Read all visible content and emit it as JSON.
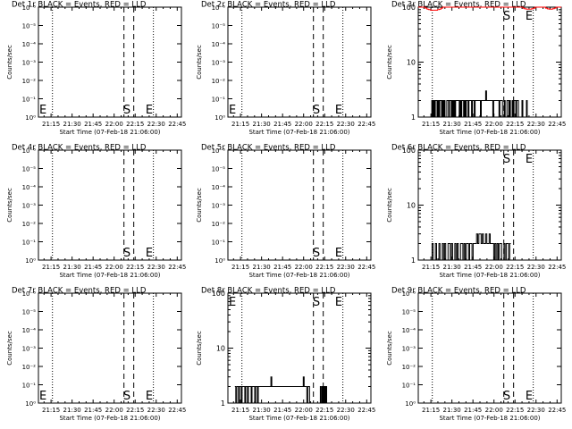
{
  "x_tick_labels": [
    "21:15",
    "21:30",
    "21:45",
    "22:00",
    "22:15",
    "22:30",
    "22:45"
  ],
  "xlabel": "Start Time (07-Feb-18 21:06:00)",
  "ylabel": "Counts/sec",
  "log_ticks_small": [
    "10⁰",
    "10⁻¹",
    "10⁻²",
    "10⁻³",
    "10⁻⁴",
    "10⁻⁵",
    "10⁻⁶"
  ],
  "log_ticks_large": [
    "1",
    "10",
    "100"
  ],
  "marker_s": "S",
  "marker_e": "E",
  "colors": {
    "events": "#000000",
    "lld": "#ff0000",
    "background": "#ffffff"
  },
  "chart_data": [
    {
      "type": "line",
      "title": "Det 1r BLACK = Events, RED = LLD",
      "xlabel": "Start Time (07-Feb-18 21:06:00)",
      "ylabel": "Counts/sec",
      "y_scale": "log",
      "ylim": [
        1e-06,
        1
      ],
      "x_range": [
        "21:06",
        "22:48"
      ],
      "grid": false,
      "dotted_lines": [
        "21:16",
        "22:28"
      ],
      "dashed_lines": [
        "22:07",
        "22:14"
      ],
      "s_marker_time": "22:09",
      "e_marker_time": "22:25",
      "e_left_edge": true,
      "events": [],
      "lld": []
    },
    {
      "type": "line",
      "title": "Det 2r BLACK = Events, RED = LLD",
      "xlabel": "Start Time (07-Feb-18 21:06:00)",
      "ylabel": "Counts/sec",
      "y_scale": "log",
      "ylim": [
        1e-06,
        1
      ],
      "x_range": [
        "21:06",
        "22:48"
      ],
      "grid": false,
      "dotted_lines": [
        "21:16",
        "22:28"
      ],
      "dashed_lines": [
        "22:07",
        "22:14"
      ],
      "s_marker_time": "22:09",
      "e_marker_time": "22:25",
      "e_left_edge": true,
      "events": [],
      "lld": []
    },
    {
      "type": "line",
      "title": "Det 3r BLACK = Events, RED = LLD",
      "xlabel": "Start Time (07-Feb-18 21:06:00)",
      "ylabel": "Counts/sec",
      "y_scale": "log",
      "ylim": [
        1,
        100
      ],
      "x_range": [
        "21:06",
        "22:48"
      ],
      "grid": false,
      "dotted_lines": [
        "21:16",
        "22:28"
      ],
      "dashed_lines": [
        "22:07",
        "22:14"
      ],
      "s_marker_time": "22:09",
      "e_marker_time": "22:25",
      "e_left_edge": false,
      "events": {
        "x_start": "21:15",
        "x_end": "22:25",
        "values": [
          1,
          2,
          1,
          2,
          1,
          2,
          2,
          1,
          2,
          1,
          2,
          2,
          1,
          2,
          1,
          2,
          1,
          1,
          2,
          2,
          1,
          2,
          2,
          1,
          2,
          1,
          2,
          1,
          2,
          2,
          2,
          2,
          1,
          2,
          1,
          2,
          2,
          1,
          2,
          1,
          2,
          2,
          1,
          2,
          2,
          2,
          1,
          2,
          2,
          1,
          2,
          2,
          2,
          2,
          2,
          2,
          1,
          2,
          2,
          2,
          2,
          2,
          3,
          2,
          2,
          2,
          2,
          2,
          2,
          2,
          1,
          2,
          2,
          2,
          2,
          2,
          2,
          1,
          2,
          2,
          2,
          1,
          1,
          2,
          1,
          1,
          2,
          2,
          1,
          2,
          1,
          1,
          2,
          1,
          2,
          2,
          1,
          2,
          2,
          1,
          1,
          1,
          1,
          2,
          1,
          1,
          1,
          1,
          2,
          1,
          1
        ]
      },
      "lld": {
        "x_start": "21:06",
        "x_end": "22:48",
        "values": [
          100,
          100,
          100,
          100,
          96,
          92,
          90,
          88,
          88,
          88,
          88,
          90,
          92,
          96,
          100,
          100,
          100,
          100,
          100,
          100,
          100,
          100,
          100,
          100,
          100,
          100,
          100,
          100,
          100,
          100,
          100,
          100,
          100,
          100,
          100,
          100,
          100,
          100,
          100,
          100,
          100,
          100,
          100,
          100,
          100,
          100,
          100,
          100,
          100,
          100,
          100,
          100,
          100,
          100,
          100,
          100,
          100,
          100,
          100,
          100,
          96,
          93,
          92,
          92,
          92,
          94,
          96,
          100,
          100,
          100,
          100,
          100,
          100,
          96,
          93,
          92,
          92,
          94,
          96,
          100,
          100,
          100
        ]
      }
    },
    {
      "type": "line",
      "title": "Det 4r BLACK = Events, RED = LLD",
      "xlabel": "Start Time (07-Feb-18 21:06:00)",
      "ylabel": "Counts/sec",
      "y_scale": "log",
      "ylim": [
        1e-06,
        1
      ],
      "x_range": [
        "21:06",
        "22:48"
      ],
      "grid": false,
      "dotted_lines": [
        "21:16",
        "22:28"
      ],
      "dashed_lines": [
        "22:07",
        "22:14"
      ],
      "s_marker_time": "22:09",
      "e_marker_time": "22:25",
      "e_left_edge": false,
      "events": [],
      "lld": []
    },
    {
      "type": "line",
      "title": "Det 5r BLACK = Events, RED = LLD",
      "xlabel": "Start Time (07-Feb-18 21:06:00)",
      "ylabel": "Counts/sec",
      "y_scale": "log",
      "ylim": [
        1e-06,
        1
      ],
      "x_range": [
        "21:06",
        "22:48"
      ],
      "grid": false,
      "dotted_lines": [
        "21:16",
        "22:28"
      ],
      "dashed_lines": [
        "22:07",
        "22:14"
      ],
      "s_marker_time": "22:09",
      "e_marker_time": "22:25",
      "e_left_edge": false,
      "events": [],
      "lld": []
    },
    {
      "type": "line",
      "title": "Det 6r BLACK = Events, RED = LLD",
      "xlabel": "Start Time (07-Feb-18 21:06:00)",
      "ylabel": "Counts/sec",
      "y_scale": "log",
      "ylim": [
        1,
        100
      ],
      "x_range": [
        "21:06",
        "22:48"
      ],
      "grid": false,
      "dotted_lines": [
        "21:16",
        "22:28"
      ],
      "dashed_lines": [
        "22:07",
        "22:14"
      ],
      "s_marker_time": "22:09",
      "e_marker_time": "22:25",
      "e_left_edge": false,
      "events": {
        "x_start": "21:15",
        "x_end": "22:12",
        "values": [
          1,
          2,
          1,
          1,
          2,
          1,
          1,
          2,
          1,
          1,
          2,
          1,
          2,
          1,
          1,
          2,
          2,
          1,
          2,
          1,
          1,
          2,
          1,
          2,
          1,
          1,
          2,
          2,
          1,
          2,
          1,
          2,
          2,
          1,
          2,
          2,
          1,
          2,
          2,
          2,
          3,
          2,
          3,
          3,
          2,
          3,
          2,
          2,
          3,
          2,
          2,
          3,
          2,
          2,
          2,
          1,
          2,
          1,
          2,
          1,
          2,
          2,
          1,
          1,
          2,
          1,
          2,
          2,
          1,
          2
        ]
      },
      "lld": []
    },
    {
      "type": "line",
      "title": "Det 7r BLACK = Events, RED = LLD",
      "xlabel": "Start Time (07-Feb-18 21:06:00)",
      "ylabel": "Counts/sec",
      "y_scale": "log",
      "ylim": [
        1e-06,
        1
      ],
      "x_range": [
        "21:06",
        "22:48"
      ],
      "grid": false,
      "dotted_lines": [
        "21:16",
        "22:28"
      ],
      "dashed_lines": [
        "22:07",
        "22:14"
      ],
      "s_marker_time": "22:09",
      "e_marker_time": "22:25",
      "e_left_edge": true,
      "events": [],
      "lld": []
    },
    {
      "type": "line",
      "title": "Det 8r BLACK = Events, RED = LLD",
      "xlabel": "Start Time (07-Feb-18 21:06:00)",
      "ylabel": "Counts/sec",
      "y_scale": "log",
      "ylim": [
        1,
        100
      ],
      "x_range": [
        "21:06",
        "22:48"
      ],
      "grid": false,
      "dotted_lines": [
        "21:16",
        "22:28"
      ],
      "dashed_lines": [
        "22:07",
        "22:14"
      ],
      "s_marker_time": "22:09",
      "e_marker_time": "22:25",
      "e_left_edge": true,
      "events": {
        "x_start": "21:11",
        "x_end": "22:19",
        "values": [
          2,
          1,
          2,
          2,
          1,
          2,
          2,
          1,
          2,
          2,
          2,
          1,
          2,
          2,
          1,
          2,
          2,
          2,
          1,
          2,
          2,
          2,
          1,
          2,
          2,
          1,
          2,
          2,
          2,
          2,
          2,
          2,
          2,
          2,
          2,
          2,
          2,
          2,
          2,
          2,
          3,
          2,
          2,
          2,
          2,
          2,
          2,
          2,
          2,
          2,
          2,
          2,
          2,
          2,
          2,
          2,
          2,
          2,
          2,
          2,
          2,
          2,
          2,
          2,
          2,
          2,
          2,
          2,
          2,
          2,
          2,
          2,
          2,
          2,
          2,
          2,
          3,
          2,
          2,
          2,
          1,
          2,
          2,
          1,
          1,
          1,
          1,
          1,
          1,
          1,
          1,
          1,
          1,
          1,
          1,
          2,
          1,
          2,
          1,
          2,
          1,
          2,
          1,
          1,
          1,
          1
        ]
      },
      "lld": []
    },
    {
      "type": "line",
      "title": "Det 9r BLACK = Events, RED = LLD",
      "xlabel": "Start Time (07-Feb-18 21:06:00)",
      "ylabel": "Counts/sec",
      "y_scale": "log",
      "ylim": [
        1e-06,
        1
      ],
      "x_range": [
        "21:06",
        "22:48"
      ],
      "grid": false,
      "dotted_lines": [
        "21:16",
        "22:28"
      ],
      "dashed_lines": [
        "22:07",
        "22:14"
      ],
      "s_marker_time": "22:09",
      "e_marker_time": "22:25",
      "e_left_edge": false,
      "events": [],
      "lld": []
    }
  ]
}
